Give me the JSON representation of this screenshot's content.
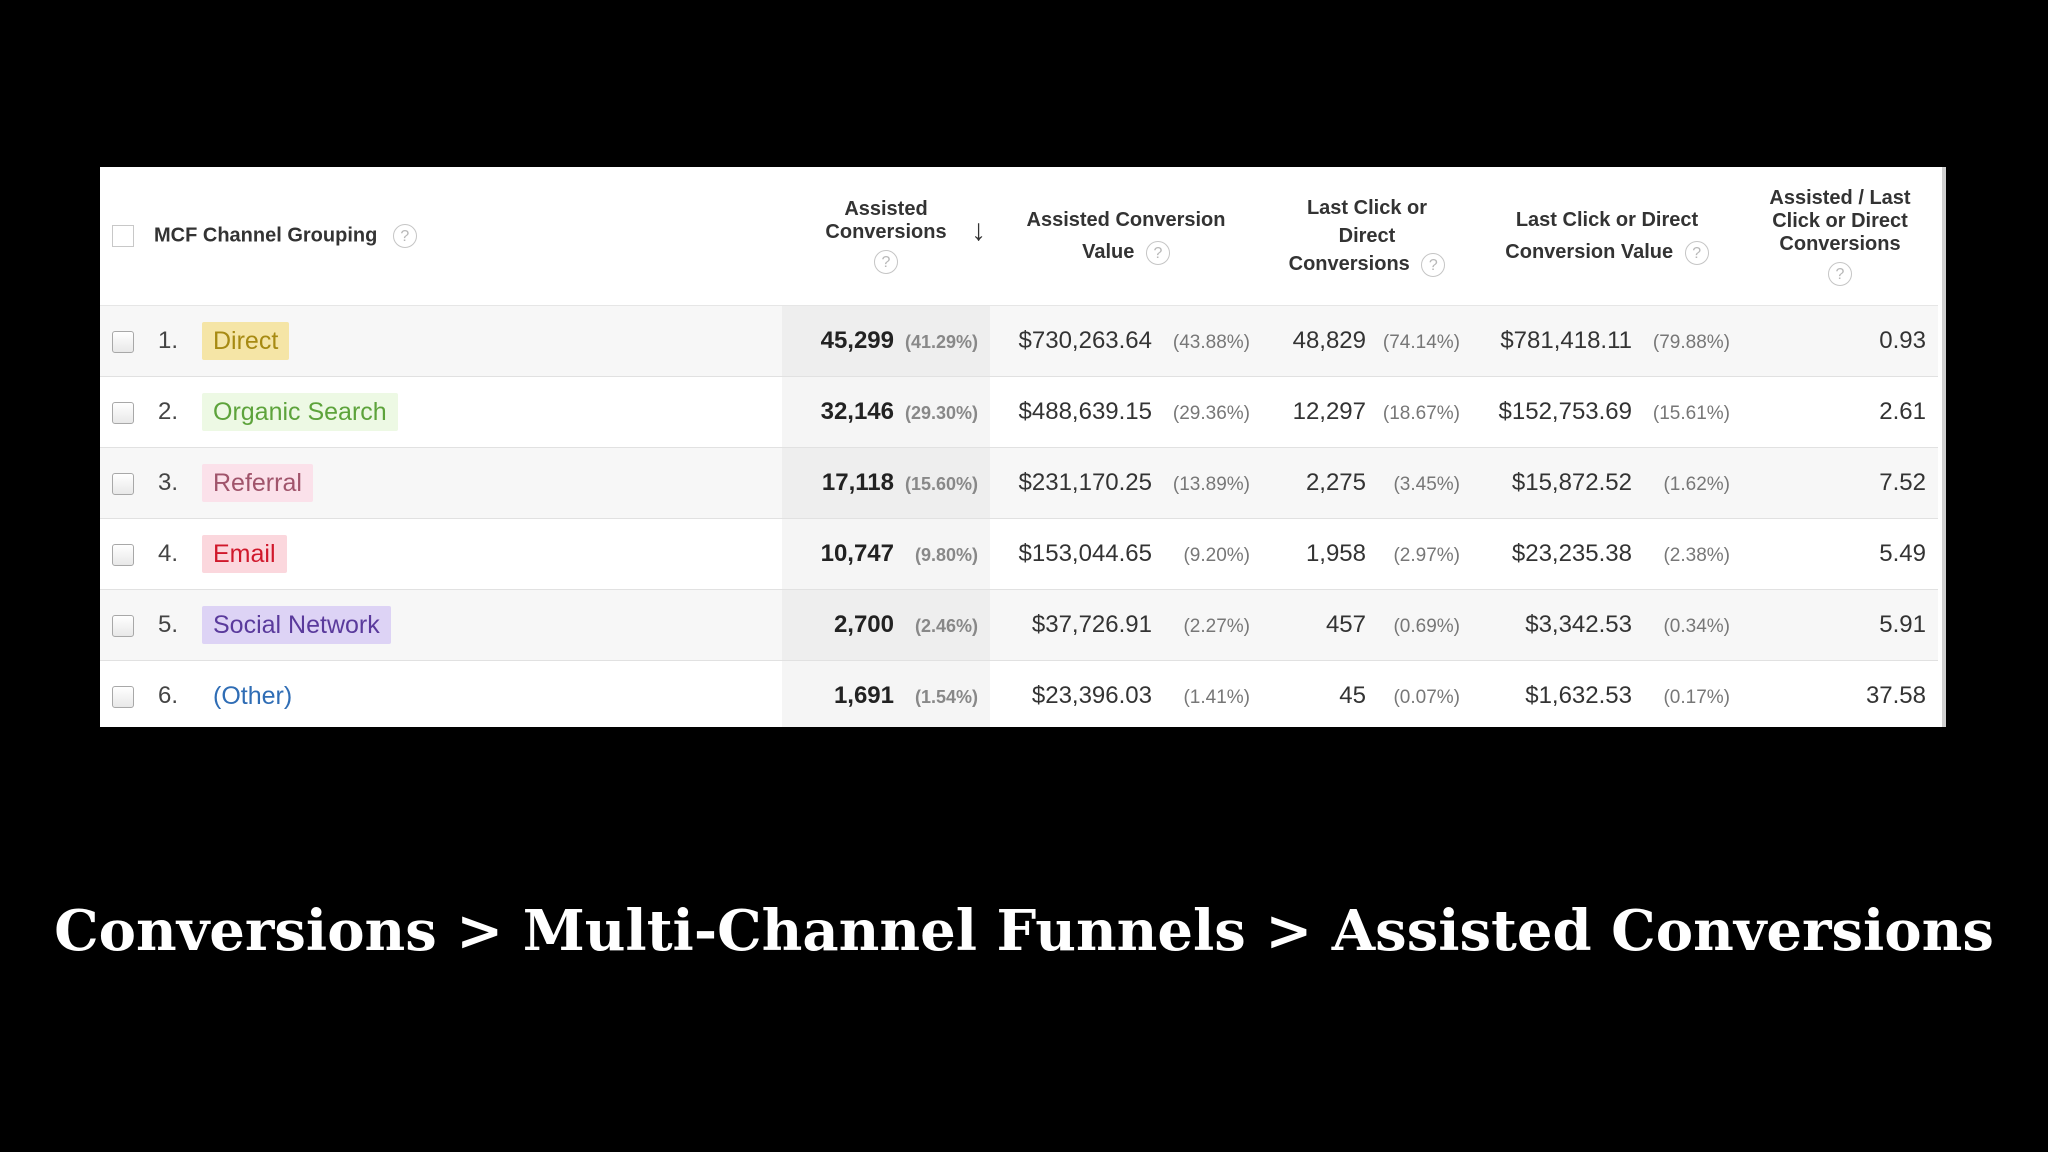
{
  "table": {
    "headers": {
      "channel": "MCF Channel Grouping",
      "assisted_conversions": "Assisted Conversions",
      "assisted_value": "Assisted Conversion Value",
      "last_click_conversions": "Last Click or Direct Conversions",
      "last_click_value": "Last Click or Direct Conversion Value",
      "ratio": "Assisted / Last Click or Direct Conversions"
    },
    "help_glyph": "?",
    "sort_arrow": "↓",
    "rows": [
      {
        "num": "1.",
        "channel": "Direct",
        "color": "#f5e5a6",
        "text_color": "#a78a12",
        "ac": "45,299",
        "ac_pct": "(41.29%)",
        "acv": "$730,263.64",
        "acv_pct": "(43.88%)",
        "lc": "48,829",
        "lc_pct": "(74.14%)",
        "lcv": "$781,418.11",
        "lcv_pct": "(79.88%)",
        "ratio": "0.93"
      },
      {
        "num": "2.",
        "channel": "Organic Search",
        "color": "#edf9e4",
        "text_color": "#5da33b",
        "ac": "32,146",
        "ac_pct": "(29.30%)",
        "acv": "$488,639.15",
        "acv_pct": "(29.36%)",
        "lc": "12,297",
        "lc_pct": "(18.67%)",
        "lcv": "$152,753.69",
        "lcv_pct": "(15.61%)",
        "ratio": "2.61"
      },
      {
        "num": "3.",
        "channel": "Referral",
        "color": "#fbe1ea",
        "text_color": "#a0546b",
        "ac": "17,118",
        "ac_pct": "(15.60%)",
        "acv": "$231,170.25",
        "acv_pct": "(13.89%)",
        "lc": "2,275",
        "lc_pct": "(3.45%)",
        "lcv": "$15,872.52",
        "lcv_pct": "(1.62%)",
        "ratio": "7.52"
      },
      {
        "num": "4.",
        "channel": "Email",
        "color": "#fbd7dd",
        "text_color": "#d0182b",
        "ac": "10,747",
        "ac_pct": "(9.80%)",
        "acv": "$153,044.65",
        "acv_pct": "(9.20%)",
        "lc": "1,958",
        "lc_pct": "(2.97%)",
        "lcv": "$23,235.38",
        "lcv_pct": "(2.38%)",
        "ratio": "5.49"
      },
      {
        "num": "5.",
        "channel": "Social Network",
        "color": "#ddd3f5",
        "text_color": "#5a3a9c",
        "ac": "2,700",
        "ac_pct": "(2.46%)",
        "acv": "$37,726.91",
        "acv_pct": "(2.27%)",
        "lc": "457",
        "lc_pct": "(0.69%)",
        "lcv": "$3,342.53",
        "lcv_pct": "(0.34%)",
        "ratio": "5.91"
      },
      {
        "num": "6.",
        "channel": "(Other)",
        "color": "transparent",
        "text_color": "#2f6db5",
        "ac": "1,691",
        "ac_pct": "(1.54%)",
        "acv": "$23,396.03",
        "acv_pct": "(1.41%)",
        "lc": "45",
        "lc_pct": "(0.07%)",
        "lcv": "$1,632.53",
        "lcv_pct": "(0.17%)",
        "ratio": "37.58"
      }
    ]
  },
  "caption": "Conversions > Multi-Channel Funnels > Assisted Conversions"
}
